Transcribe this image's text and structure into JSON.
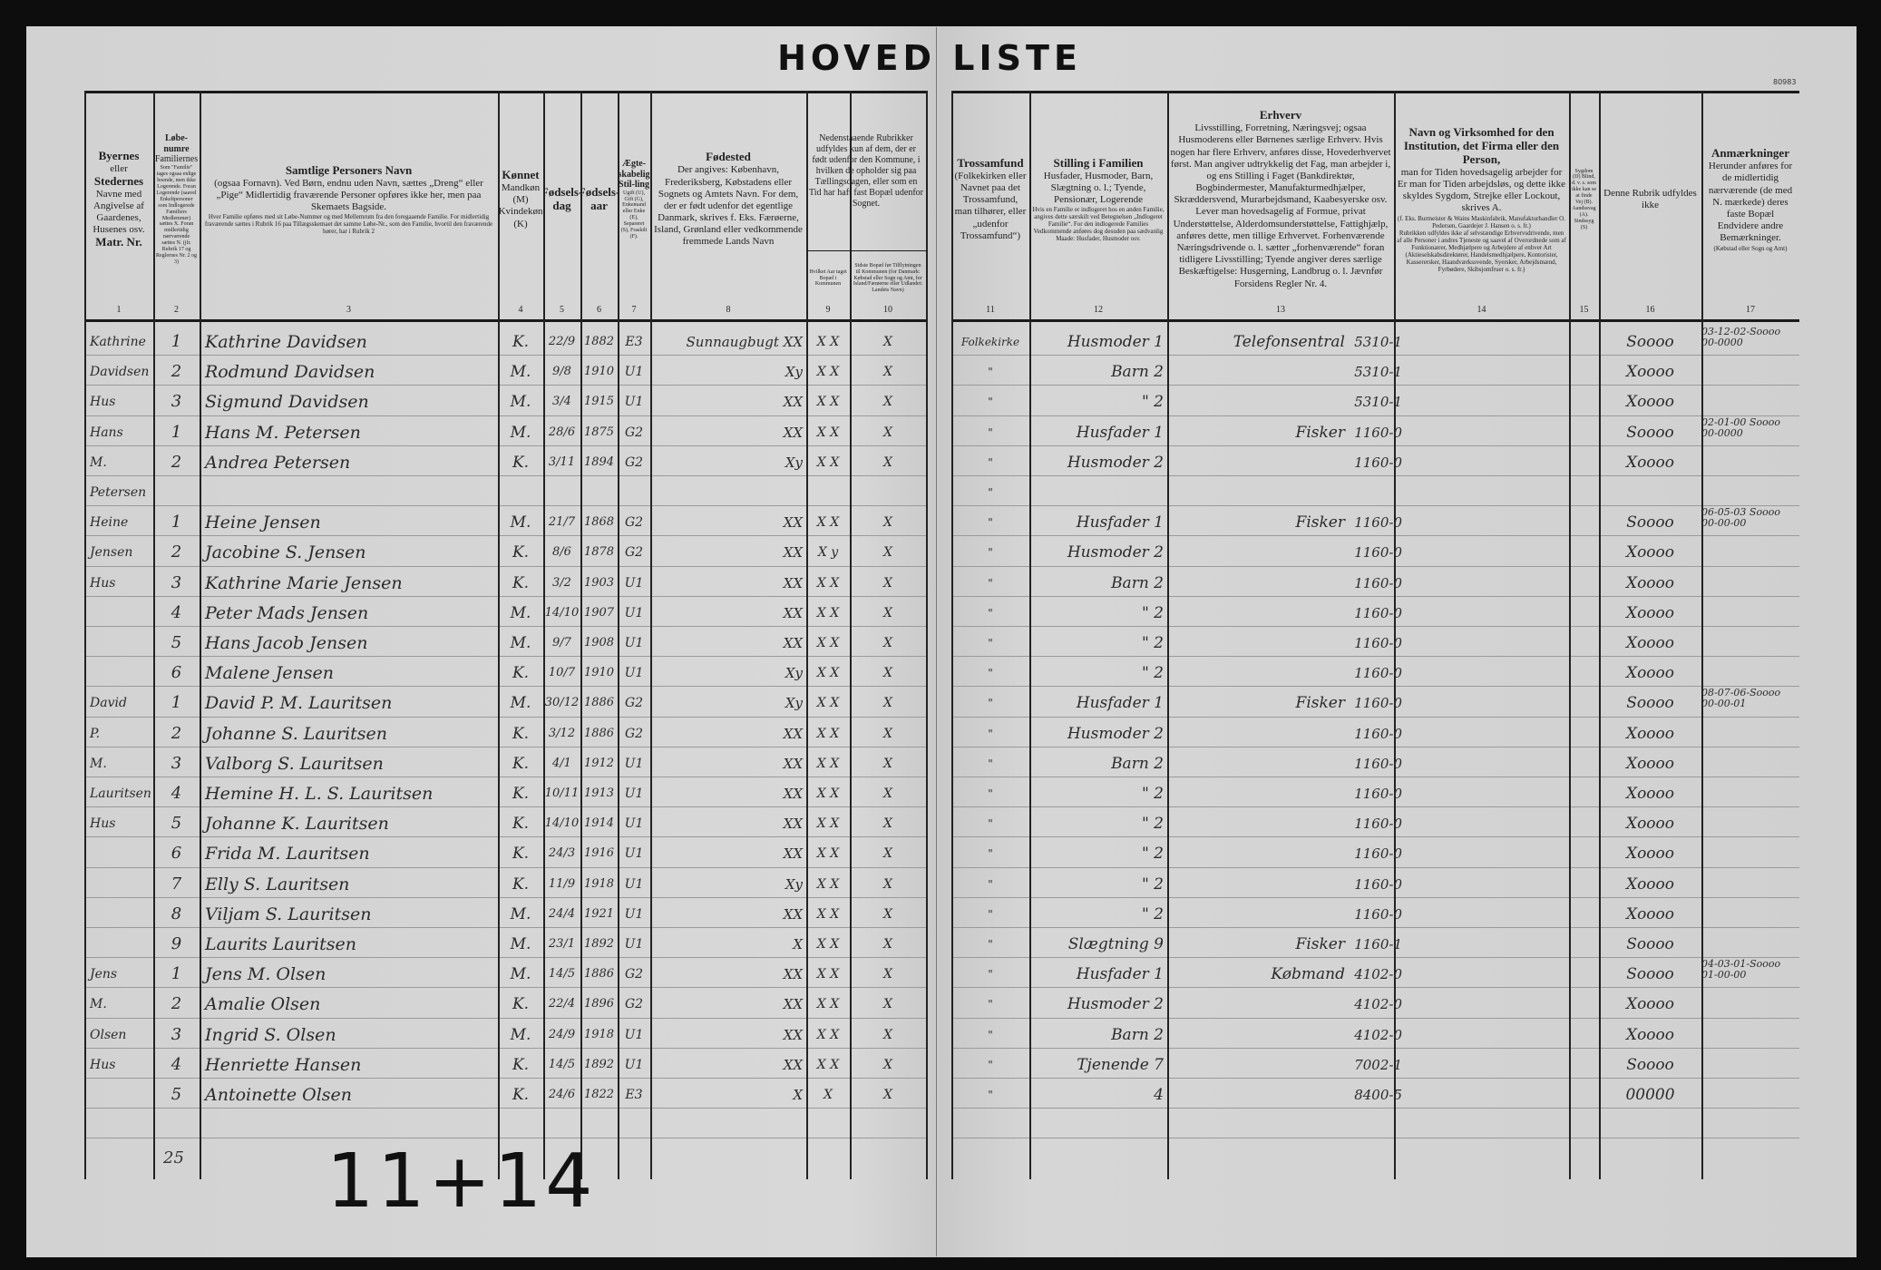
{
  "title": "HOVED LISTE",
  "stamp": "80983",
  "header": {
    "c1": {
      "num": "1",
      "title": "Byernes",
      "body": "eller",
      "title2": "Stedernes",
      "body2": "Navne med Angivelse af Gaardenes, Husenes osv.",
      "title3": "Matr. Nr."
    },
    "c2": {
      "num": "2",
      "body": "Familiernes",
      "title": "Løbe-numre",
      "small": "Som \"Familie\" tages ogsaa enlige boende, men ikke Logerende. Foran Logerende (saavel Enkeltpersoner som Indlogerede Familiers Medlemmer) sættes X. Foran midlertidig nærværende sættes N. (jfr. Rubrik 17 og Reglernes Nr. 2 og 3)"
    },
    "c3": {
      "num": "3",
      "title": "Samtlige Personers Navn",
      "body": "(ogsaa Fornavn). Ved Børn, endnu uden Navn, sættes „Dreng“ eller „Pige“ Midlertidig fraværende Personer opføres ikke her, men paa Skemaets Bagside.",
      "small": "Hver Familie opføres med sit Løbe-Nummer og med Mellemrum fra den foregaaende Familie. For midlertidig fraværende sættes i Rubrik 16 paa Tillægsskemaet det samme Løbe-Nr., som den Familie, hvortil den fraværende hører, har i Rubrik 2"
    },
    "c4": {
      "num": "4",
      "title": "Kønnet",
      "body": "Mandkøn (M) Kvindekøn (K)"
    },
    "c5": {
      "num": "5",
      "title": "Fødsels-dag"
    },
    "c6": {
      "num": "6",
      "title": "Fødsels-aar"
    },
    "c7": {
      "num": "7",
      "title": "Ægte-skabelig Stil-ling",
      "small": "Ugift (U), Gift (G), Enkemand eller Enke (E), Separeret (S), Fraskilt (F)."
    },
    "c8": {
      "num": "8",
      "title": "Fødested",
      "body": "Der angives: København, Frederiksberg, Købstadens eller Sognets og Amtets Navn. For dem, der er født udenfor det egentlige Danmark, skrives f. Eks. Færøerne, Island, Grønland eller vedkommende fremmede Lands Navn"
    },
    "c9_10": {
      "body": "Nedenstaaende Rubrikker udfyldes kun af dem, der er født udenfor den Kommune, i hvilken de opholder sig paa Tællingsdagen, eller som en Tid har haft fast Bopæl udenfor Sognet."
    },
    "c9": {
      "num": "9",
      "small": "Hvilket Aar taget Bopæl i Kommunen"
    },
    "c10": {
      "num": "10",
      "small": "Sidste Bopæl før Tilflytningen til Kommunen (for Danmark: Købstad eller Sogn og Amt, for Island/Færøerne eller Udlandet: Landets Navn)"
    },
    "c11": {
      "num": "11",
      "title": "Trossamfund",
      "body": "(Folkekirken eller Navnet paa det Trossamfund, man tilhører, eller „udenfor Trossamfund“)"
    },
    "c12": {
      "num": "12",
      "title": "Stilling i Familien",
      "body": "Husfader, Husmoder, Barn, Slægtning o. l.; Tyende, Pensionær, Logerende",
      "small": "Hvis en Familie er indlogeret hos en anden Familie, angives dette særskilt ved Betegnelsen „Indlogeret Familie“. For den indlogerede Families Vedkommende anføres dog desuden paa sædvanlig Maade: Husfader, Husmoder osv."
    },
    "c13": {
      "num": "13",
      "title": "Erhverv",
      "body": "Livsstilling, Forretning, Næringsvej; ogsaa Husmoderens eller Børnenes særlige Erhverv. Hvis nogen har flere Erhverv, anføres disse, Hovederhvervet først. Man angiver udtrykkelig det Fag, man arbejder i, og ens Stilling i Faget (Bankdirektør, Bogbindermester, Manufakturmedhjælper, Skræddersvend, Murarbejdsmand, Kaabesyerske osv. Lever man hovedsagelig af Formue, privat Understøttelse, Alderdomsunderstøttelse, Fattighjælp, anføres dette, men tillige Erhvervet. Forhenværende Næringsdrivende o. l. sætter „forhenværende“ foran tidligere Livsstilling; Tyende angiver deres særlige Beskæftigelse: Husgerning, Landbrug o. l. Jævnfør Forsidens Regler Nr. 4."
    },
    "c14": {
      "num": "14",
      "title": "Navn og Virksomhed for den Institution, det Firma eller den Person,",
      "body": "man for Tiden hovedsagelig arbejder for",
      "small": "(f. Eks. Burmeister & Wains Maskinfabrik, Manufakturhandler O. Pedersen, Gaardejer J. Hansen o. s. fr.)",
      "body2": "Er man for Tiden arbejdsløs, og dette ikke skyldes Sygdom, Strejke eller Lockout, skrives A.",
      "small2": "Rubrikken udfyldes ikke af selvstændige Erhvervsdrivende, men af alle Personer i andres Tjeneste og saavel af Overordnede som af Funktionærer, Medhjælpere og Arbejdere af enhver Art (Aktieselskabsdirektører, Handelsmedhjælpere, Kontorister, Kasserersker, Haandværkssvende, Syersker, Arbejdsmænd, Fyrbødere, Skibsjomfruer o. s. fr.)"
    },
    "c15": {
      "num": "15",
      "small": "Sygdom (D) Blind, d. v. s. som ikke kan se at finde Vej (B). Aandssvag (A). Sindssyg (S)"
    },
    "c16": {
      "num": "16",
      "body": "Denne Rubrik udfyldes ikke"
    },
    "c17": {
      "num": "17",
      "title": "Anmærkninger",
      "body": "Herunder anføres for de midlertidig nærværende (de med N. mærkede) deres faste Bopæl",
      "small": "(Købstad eller Sogn og Amt)",
      "body2": "Endvidere andre Bemærkninger."
    }
  },
  "rows": [
    {
      "c1": "Kathrine",
      "c2": "1",
      "c3": "Kathrine Davidsen",
      "c4": "K.",
      "c5": "22/9",
      "c6": "1882",
      "c7": "E3",
      "c8": "Sunnaugbugt XX",
      "c9": "X X",
      "c10": "X",
      "c11": "Folkekirke",
      "c12": "Husmoder 1",
      "c13a": "Telefonsentral",
      "c13b": "5310-1",
      "c16": "Soooo",
      "c17": "03-12-02-Soooo\n00-0000"
    },
    {
      "c1": "Davidsen",
      "c2": "2",
      "c3": "Rodmund Davidsen",
      "c4": "M.",
      "c5": "9/8",
      "c6": "1910",
      "c7": "U1",
      "c8": "Xy",
      "c9": "X X",
      "c10": "X",
      "c11": "\"",
      "c12": "Barn 2",
      "c13a": "",
      "c13b": "5310-1",
      "c16": "Xoooo",
      "c17": ""
    },
    {
      "c1": "Hus",
      "c2": "3",
      "c3": "Sigmund Davidsen",
      "c4": "M.",
      "c5": "3/4",
      "c6": "1915",
      "c7": "U1",
      "c8": "XX",
      "c9": "X X",
      "c10": "X",
      "c11": "\"",
      "c12": "\" 2",
      "c13a": "",
      "c13b": "5310-1",
      "c16": "Xoooo",
      "c17": ""
    },
    {
      "c1": "Hans",
      "c2": "1",
      "c3": "Hans M. Petersen",
      "c4": "M.",
      "c5": "28/6",
      "c6": "1875",
      "c7": "G2",
      "c8": "XX",
      "c9": "X X",
      "c10": "X",
      "c11": "\"",
      "c12": "Husfader 1",
      "c13a": "Fisker",
      "c13b": "1160-0",
      "c16": "Soooo",
      "c17": "02-01-00 Soooo\n00-0000"
    },
    {
      "c1": "M.",
      "c2": "2",
      "c3": "Andrea Petersen",
      "c4": "K.",
      "c5": "3/11",
      "c6": "1894",
      "c7": "G2",
      "c8": "Xy",
      "c9": "X X",
      "c10": "X",
      "c11": "\"",
      "c12": "Husmoder 2",
      "c13a": "",
      "c13b": "1160-0",
      "c16": "Xoooo",
      "c17": ""
    },
    {
      "c1": "Petersen",
      "c2": "",
      "c3": "",
      "c4": "",
      "c5": "",
      "c6": "",
      "c7": "",
      "c8": "",
      "c9": "",
      "c10": "",
      "c11": "\"",
      "c12": "",
      "c13a": "",
      "c13b": "",
      "c16": "",
      "c17": ""
    },
    {
      "c1": "Heine",
      "c2": "1",
      "c3": "Heine Jensen",
      "c4": "M.",
      "c5": "21/7",
      "c6": "1868",
      "c7": "G2",
      "c8": "XX",
      "c9": "X X",
      "c10": "X",
      "c11": "\"",
      "c12": "Husfader 1",
      "c13a": "Fisker",
      "c13b": "1160-0",
      "c16": "Soooo",
      "c17": "06-05-03 Soooo\n00-00-00"
    },
    {
      "c1": "Jensen",
      "c2": "2",
      "c3": "Jacobine S. Jensen",
      "c4": "K.",
      "c5": "8/6",
      "c6": "1878",
      "c7": "G2",
      "c8": "XX",
      "c9": "X y",
      "c10": "X",
      "c11": "\"",
      "c12": "Husmoder 2",
      "c13a": "",
      "c13b": "1160-0",
      "c16": "Xoooo",
      "c17": ""
    },
    {
      "c1": "Hus",
      "c2": "3",
      "c3": "Kathrine Marie Jensen",
      "c4": "K.",
      "c5": "3/2",
      "c6": "1903",
      "c7": "U1",
      "c8": "XX",
      "c9": "X X",
      "c10": "X",
      "c11": "\"",
      "c12": "Barn 2",
      "c13a": "",
      "c13b": "1160-0",
      "c16": "Xoooo",
      "c17": ""
    },
    {
      "c1": "",
      "c2": "4",
      "c3": "Peter Mads Jensen",
      "c4": "M.",
      "c5": "14/10",
      "c6": "1907",
      "c7": "U1",
      "c8": "XX",
      "c9": "X X",
      "c10": "X",
      "c11": "\"",
      "c12": "\" 2",
      "c13a": "",
      "c13b": "1160-0",
      "c16": "Xoooo",
      "c17": ""
    },
    {
      "c1": "",
      "c2": "5",
      "c3": "Hans Jacob Jensen",
      "c4": "M.",
      "c5": "9/7",
      "c6": "1908",
      "c7": "U1",
      "c8": "XX",
      "c9": "X X",
      "c10": "X",
      "c11": "\"",
      "c12": "\" 2",
      "c13a": "",
      "c13b": "1160-0",
      "c16": "Xoooo",
      "c17": ""
    },
    {
      "c1": "",
      "c2": "6",
      "c3": "Malene Jensen",
      "c4": "K.",
      "c5": "10/7",
      "c6": "1910",
      "c7": "U1",
      "c8": "Xy",
      "c9": "X X",
      "c10": "X",
      "c11": "\"",
      "c12": "\" 2",
      "c13a": "",
      "c13b": "1160-0",
      "c16": "Xoooo",
      "c17": ""
    },
    {
      "c1": "David",
      "c2": "1",
      "c3": "David P. M. Lauritsen",
      "c4": "M.",
      "c5": "30/12",
      "c6": "1886",
      "c7": "G2",
      "c8": "Xy",
      "c9": "X X",
      "c10": "X",
      "c11": "\"",
      "c12": "Husfader 1",
      "c13a": "Fisker",
      "c13b": "1160-0",
      "c16": "Soooo",
      "c17": "08-07-06-Soooo\n00-00-01"
    },
    {
      "c1": "P.",
      "c2": "2",
      "c3": "Johanne S. Lauritsen",
      "c4": "K.",
      "c5": "3/12",
      "c6": "1886",
      "c7": "G2",
      "c8": "XX",
      "c9": "X X",
      "c10": "X",
      "c11": "\"",
      "c12": "Husmoder 2",
      "c13a": "",
      "c13b": "1160-0",
      "c16": "Xoooo",
      "c17": ""
    },
    {
      "c1": "M.",
      "c2": "3",
      "c3": "Valborg S. Lauritsen",
      "c4": "K.",
      "c5": "4/1",
      "c6": "1912",
      "c7": "U1",
      "c8": "XX",
      "c9": "X X",
      "c10": "X",
      "c11": "\"",
      "c12": "Barn 2",
      "c13a": "",
      "c13b": "1160-0",
      "c16": "Xoooo",
      "c17": ""
    },
    {
      "c1": "Lauritsen",
      "c2": "4",
      "c3": "Hemine H. L. S. Lauritsen",
      "c4": "K.",
      "c5": "10/11",
      "c6": "1913",
      "c7": "U1",
      "c8": "XX",
      "c9": "X X",
      "c10": "X",
      "c11": "\"",
      "c12": "\" 2",
      "c13a": "",
      "c13b": "1160-0",
      "c16": "Xoooo",
      "c17": ""
    },
    {
      "c1": "Hus",
      "c2": "5",
      "c3": "Johanne K. Lauritsen",
      "c4": "K.",
      "c5": "14/10",
      "c6": "1914",
      "c7": "U1",
      "c8": "XX",
      "c9": "X X",
      "c10": "X",
      "c11": "\"",
      "c12": "\" 2",
      "c13a": "",
      "c13b": "1160-0",
      "c16": "Xoooo",
      "c17": ""
    },
    {
      "c1": "",
      "c2": "6",
      "c3": "Frida M. Lauritsen",
      "c4": "K.",
      "c5": "24/3",
      "c6": "1916",
      "c7": "U1",
      "c8": "XX",
      "c9": "X X",
      "c10": "X",
      "c11": "\"",
      "c12": "\" 2",
      "c13a": "",
      "c13b": "1160-0",
      "c16": "Xoooo",
      "c17": ""
    },
    {
      "c1": "",
      "c2": "7",
      "c3": "Elly S. Lauritsen",
      "c4": "K.",
      "c5": "11/9",
      "c6": "1918",
      "c7": "U1",
      "c8": "Xy",
      "c9": "X X",
      "c10": "X",
      "c11": "\"",
      "c12": "\" 2",
      "c13a": "",
      "c13b": "1160-0",
      "c16": "Xoooo",
      "c17": ""
    },
    {
      "c1": "",
      "c2": "8",
      "c3": "Viljam S. Lauritsen",
      "c4": "M.",
      "c5": "24/4",
      "c6": "1921",
      "c7": "U1",
      "c8": "XX",
      "c9": "X X",
      "c10": "X",
      "c11": "\"",
      "c12": "\" 2",
      "c13a": "",
      "c13b": "1160-0",
      "c16": "Xoooo",
      "c17": ""
    },
    {
      "c1": "",
      "c2": "9",
      "c3": "Laurits Lauritsen",
      "c4": "M.",
      "c5": "23/1",
      "c6": "1892",
      "c7": "U1",
      "c8": "X",
      "c9": "X X",
      "c10": "X",
      "c11": "\"",
      "c12": "Slægtning 9",
      "c13a": "Fisker",
      "c13b": "1160-1",
      "c16": "Soooo",
      "c17": ""
    },
    {
      "c1": "Jens",
      "c2": "1",
      "c3": "Jens M. Olsen",
      "c4": "M.",
      "c5": "14/5",
      "c6": "1886",
      "c7": "G2",
      "c8": "XX",
      "c9": "X X",
      "c10": "X",
      "c11": "\"",
      "c12": "Husfader 1",
      "c13a": "Købmand",
      "c13b": "4102-0",
      "c16": "Soooo",
      "c17": "04-03-01-Soooo\n01-00-00"
    },
    {
      "c1": "M.",
      "c2": "2",
      "c3": "Amalie Olsen",
      "c4": "K.",
      "c5": "22/4",
      "c6": "1896",
      "c7": "G2",
      "c8": "XX",
      "c9": "X X",
      "c10": "X",
      "c11": "\"",
      "c12": "Husmoder 2",
      "c13a": "",
      "c13b": "4102-0",
      "c16": "Xoooo",
      "c17": ""
    },
    {
      "c1": "Olsen",
      "c2": "3",
      "c3": "Ingrid S. Olsen",
      "c4": "M.",
      "c5": "24/9",
      "c6": "1918",
      "c7": "U1",
      "c8": "XX",
      "c9": "X X",
      "c10": "X",
      "c11": "\"",
      "c12": "Barn 2",
      "c13a": "",
      "c13b": "4102-0",
      "c16": "Xoooo",
      "c17": ""
    },
    {
      "c1": "Hus",
      "c2": "4",
      "c3": "Henriette Hansen",
      "c4": "K.",
      "c5": "14/5",
      "c6": "1892",
      "c7": "U1",
      "c8": "XX",
      "c9": "X X",
      "c10": "X",
      "c11": "\"",
      "c12": "Tjenende 7",
      "c13a": "",
      "c13b": "7002-1",
      "c16": "Soooo",
      "c17": ""
    },
    {
      "c1": "",
      "c2": "5",
      "c3": "Antoinette Olsen",
      "c4": "K.",
      "c5": "24/6",
      "c6": "1822",
      "c7": "E3",
      "c8": "X",
      "c9": "X",
      "c10": "X",
      "c11": "\"",
      "c12": "4",
      "c13a": "",
      "c13b": "8400-5",
      "c16": "00000",
      "c17": ""
    }
  ],
  "total": "25",
  "tally": "11+14"
}
